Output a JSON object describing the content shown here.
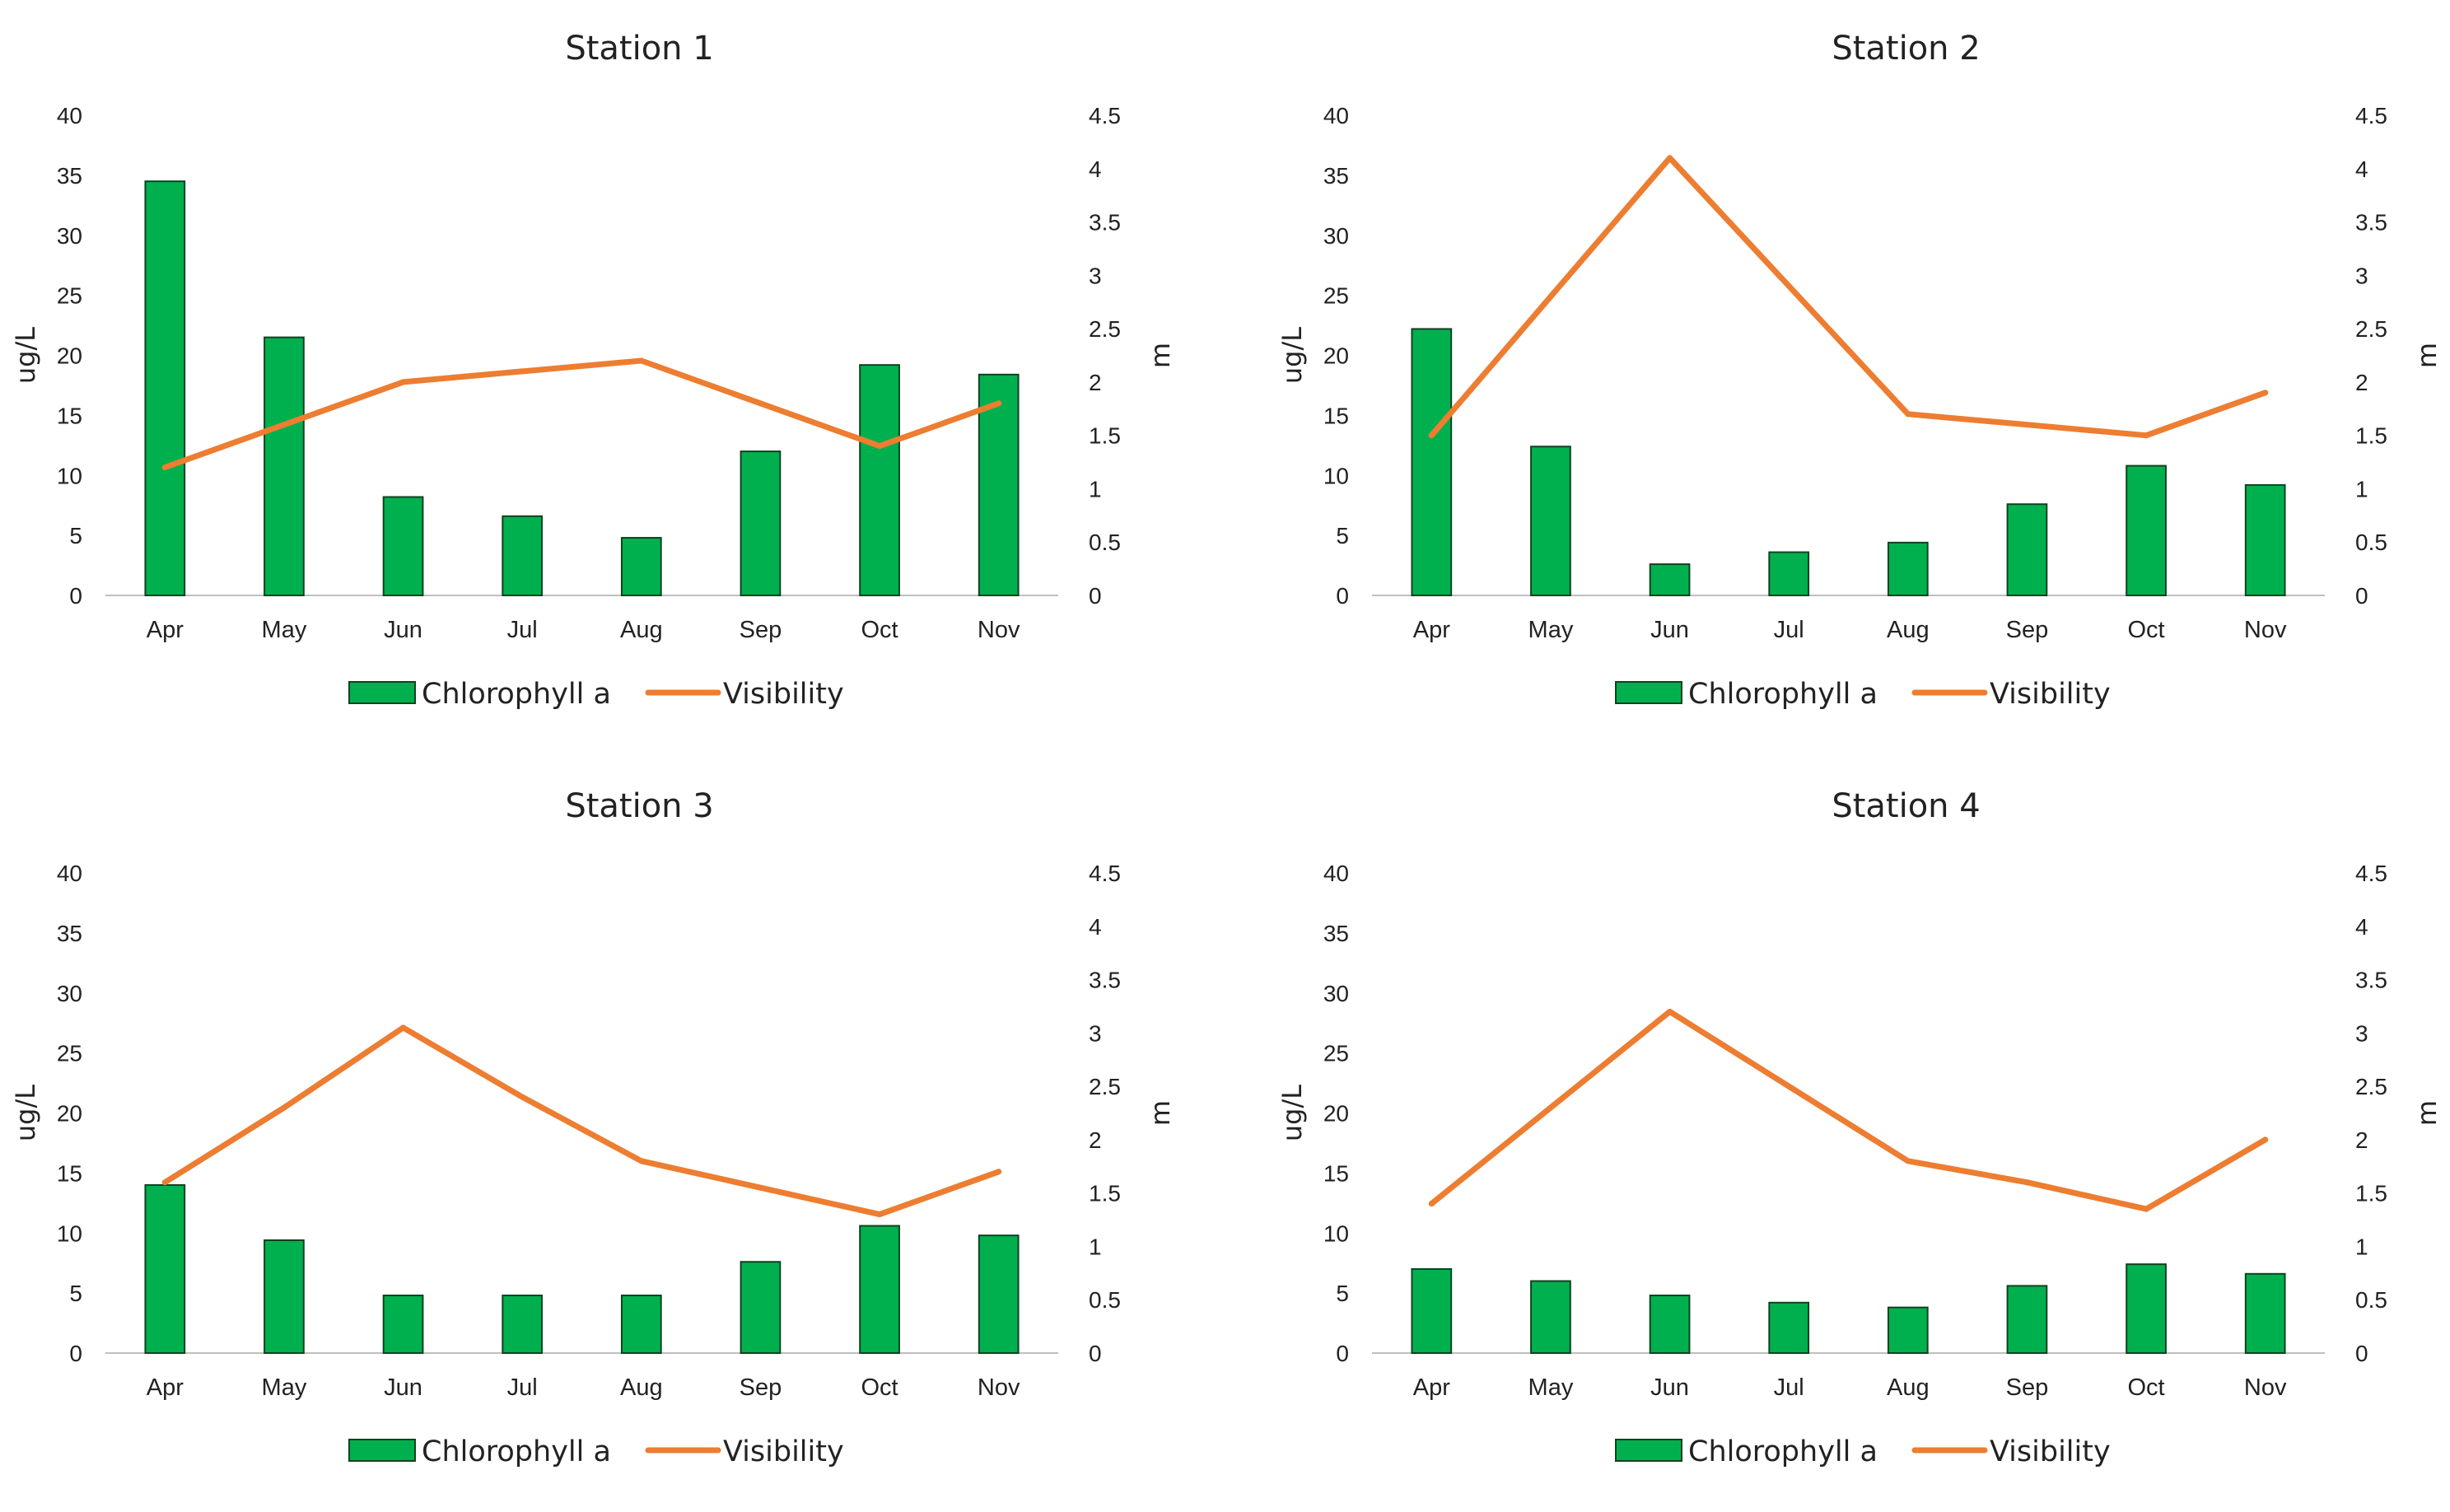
{
  "chart_data": [
    {
      "type": "bar",
      "title": "Station 1",
      "categories": [
        "Apr",
        "May",
        "Jun",
        "Jul",
        "Aug",
        "Sep",
        "Oct",
        "Nov"
      ],
      "ylabel": "ug/L",
      "y2label": "m",
      "ylim": [
        0,
        40
      ],
      "y2lim": [
        0,
        4.5
      ],
      "yticks": [
        "0",
        "5",
        "10",
        "15",
        "20",
        "25",
        "30",
        "35",
        "40"
      ],
      "y2ticks": [
        "0",
        "0.5",
        "1",
        "1.5",
        "2",
        "2.5",
        "3",
        "3.5",
        "4",
        "4.5"
      ],
      "legend_position": "bottom",
      "series": [
        {
          "name": "Chlorophyll a",
          "kind": "bar",
          "axis": "left",
          "values": [
            34.5,
            21.5,
            8.2,
            6.6,
            4.8,
            12.0,
            19.2,
            18.4
          ]
        },
        {
          "name": "Visibility",
          "kind": "line",
          "axis": "right",
          "values": [
            1.2,
            1.6,
            2.0,
            2.1,
            2.2,
            1.8,
            1.4,
            1.8
          ]
        }
      ]
    },
    {
      "type": "bar",
      "title": "Station 2",
      "categories": [
        "Apr",
        "May",
        "Jun",
        "Jul",
        "Aug",
        "Sep",
        "Oct",
        "Nov"
      ],
      "ylabel": "ug/L",
      "y2label": "m",
      "ylim": [
        0,
        40
      ],
      "y2lim": [
        0,
        4.5
      ],
      "yticks": [
        "0",
        "5",
        "10",
        "15",
        "20",
        "25",
        "30",
        "35",
        "40"
      ],
      "y2ticks": [
        "0",
        "0.5",
        "1",
        "1.5",
        "2",
        "2.5",
        "3",
        "3.5",
        "4",
        "4.5"
      ],
      "legend_position": "bottom",
      "series": [
        {
          "name": "Chlorophyll a",
          "kind": "bar",
          "axis": "left",
          "values": [
            22.2,
            12.4,
            2.6,
            3.6,
            4.4,
            7.6,
            10.8,
            9.2
          ]
        },
        {
          "name": "Visibility",
          "kind": "line",
          "axis": "right",
          "values": [
            1.5,
            2.8,
            4.1,
            2.9,
            1.7,
            1.6,
            1.5,
            1.9
          ]
        }
      ]
    },
    {
      "type": "bar",
      "title": "Station 3",
      "categories": [
        "Apr",
        "May",
        "Jun",
        "Jul",
        "Aug",
        "Sep",
        "Oct",
        "Nov"
      ],
      "ylabel": "ug/L",
      "y2label": "m",
      "ylim": [
        0,
        40
      ],
      "y2lim": [
        0,
        4.5
      ],
      "yticks": [
        "0",
        "5",
        "10",
        "15",
        "20",
        "25",
        "30",
        "35",
        "40"
      ],
      "y2ticks": [
        "0",
        "0.5",
        "1",
        "1.5",
        "2",
        "2.5",
        "3",
        "3.5",
        "4",
        "4.5"
      ],
      "legend_position": "bottom",
      "series": [
        {
          "name": "Chlorophyll a",
          "kind": "bar",
          "axis": "left",
          "values": [
            14.0,
            9.4,
            4.8,
            4.8,
            4.8,
            7.6,
            10.6,
            9.8
          ]
        },
        {
          "name": "Visibility",
          "kind": "line",
          "axis": "right",
          "values": [
            1.6,
            2.3,
            3.05,
            2.4,
            1.8,
            1.55,
            1.3,
            1.7
          ]
        }
      ]
    },
    {
      "type": "bar",
      "title": "Station 4",
      "categories": [
        "Apr",
        "May",
        "Jun",
        "Jul",
        "Aug",
        "Sep",
        "Oct",
        "Nov"
      ],
      "ylabel": "ug/L",
      "y2label": "m",
      "ylim": [
        0,
        40
      ],
      "y2lim": [
        0,
        4.5
      ],
      "yticks": [
        "0",
        "5",
        "10",
        "15",
        "20",
        "25",
        "30",
        "35",
        "40"
      ],
      "y2ticks": [
        "0",
        "0.5",
        "1",
        "1.5",
        "2",
        "2.5",
        "3",
        "3.5",
        "4",
        "4.5"
      ],
      "legend_position": "bottom",
      "series": [
        {
          "name": "Chlorophyll a",
          "kind": "bar",
          "axis": "left",
          "values": [
            7.0,
            6.0,
            4.8,
            4.2,
            3.8,
            5.6,
            7.4,
            6.6
          ]
        },
        {
          "name": "Visibility",
          "kind": "line",
          "axis": "right",
          "values": [
            1.4,
            2.3,
            3.2,
            2.5,
            1.8,
            1.6,
            1.35,
            2.0
          ]
        }
      ]
    }
  ],
  "colors": {
    "bar_fill": "#00b04f",
    "bar_stroke": "#10421f",
    "line": "#ed7d31",
    "axis": "#bfbfbf",
    "text": "#222222"
  }
}
